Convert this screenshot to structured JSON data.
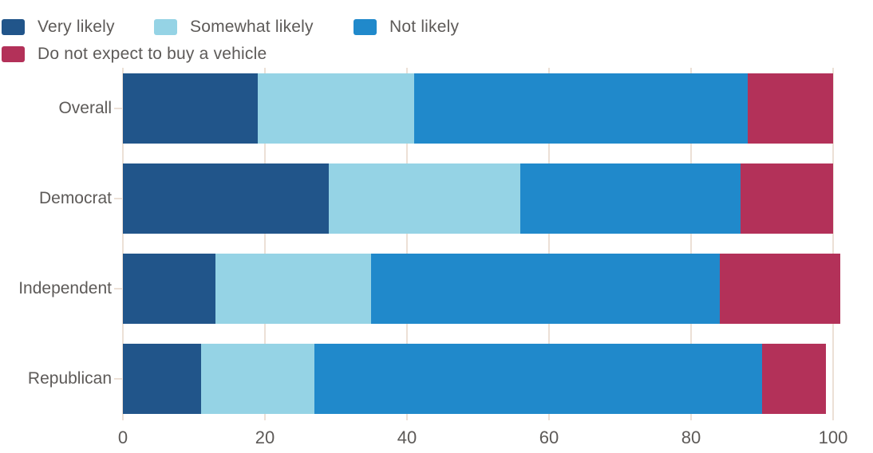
{
  "chart_data": {
    "type": "bar",
    "orientation": "horizontal",
    "stacked": true,
    "title": "",
    "xlabel": "",
    "ylabel": "",
    "grid": true,
    "legend_position": "top-left",
    "xlim": [
      0,
      100
    ],
    "xticks": [
      "0",
      "20",
      "40",
      "60",
      "80",
      "100"
    ],
    "categories": [
      "Overall",
      "Democrat",
      "Independent",
      "Republican"
    ],
    "series": [
      {
        "name": "Very likely",
        "color": "#21558a",
        "values": [
          19,
          29,
          13,
          11
        ]
      },
      {
        "name": "Somewhat likely",
        "color": "#95d3e5",
        "values": [
          22,
          27,
          22,
          16
        ]
      },
      {
        "name": "Not likely",
        "color": "#2089cb",
        "values": [
          47,
          31,
          49,
          63
        ]
      },
      {
        "name": "Do not expect to buy a vehicle",
        "color": "#b33159",
        "values": [
          12,
          13,
          17,
          9
        ]
      }
    ]
  },
  "colors": {
    "gridline": "#ece0d6",
    "label_text": "#5d5a58",
    "background": "#ffffff"
  }
}
